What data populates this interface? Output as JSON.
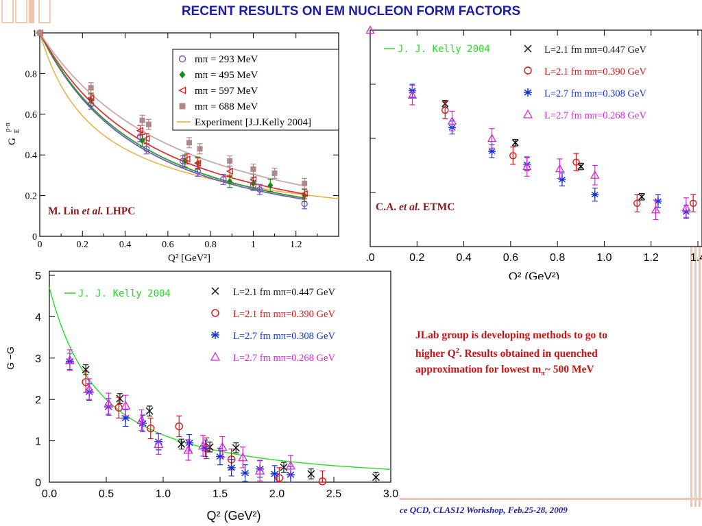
{
  "slide": {
    "title": "RECENT RESULTS ON EM NUCLEON FORM FACTORS",
    "note_line1": "JLab  group is developing methods to go to",
    "note_line2a": "higher Q",
    "note_line2b": ". Results obtained in quenched",
    "note_line3a": "approximation for lowest  m",
    "note_line3b": "~ 500 MeV",
    "footer": "ce QCD,  CLAS12 Workshop, Feb.25-28,  2009",
    "accent_color": "#f3c4ad",
    "title_color": "#1c1ca8",
    "note_color": "#cc1111"
  },
  "chart_data": [
    {
      "type": "scatter",
      "id": "lhpc",
      "ylabel": "G_E^{p-n}",
      "xlabel": "Q² [GeV²]",
      "xlim": [
        0,
        1.4
      ],
      "ylim": [
        0,
        1.0
      ],
      "xticks": [
        0,
        0.2,
        0.4,
        0.6,
        0.8,
        1,
        1.2
      ],
      "yticks": [
        0,
        0.2,
        0.4,
        0.6,
        0.8,
        1
      ],
      "xtick_labels": [
        "0",
        "0.2",
        "0.4",
        "0.6",
        "0.8",
        "1",
        "1.2"
      ],
      "ytick_labels": [
        "0",
        "0.2",
        "0.4",
        "0.6",
        "0.8",
        "1"
      ],
      "label_name": "M. Lin",
      "label_etal": "et al.",
      "label_group": "LHPC",
      "series": [
        {
          "name": "mπ = 293 MeV",
          "marker": "circle",
          "color": "#7b4fc6",
          "points": [
            [
              0,
              1.0
            ],
            [
              0.24,
              0.65
            ],
            [
              0.47,
              0.49
            ],
            [
              0.5,
              0.43
            ],
            [
              0.67,
              0.37
            ],
            [
              0.74,
              0.32
            ],
            [
              0.86,
              0.28
            ],
            [
              1.0,
              0.25
            ],
            [
              1.03,
              0.23
            ],
            [
              1.24,
              0.16
            ]
          ],
          "err": 0.025
        },
        {
          "name": "mπ = 495 MeV",
          "marker": "diamond",
          "color": "#1a8a1a",
          "points": [
            [
              0,
              1.0
            ],
            [
              0.24,
              0.67
            ],
            [
              0.48,
              0.47
            ],
            [
              0.68,
              0.37
            ],
            [
              0.74,
              0.36
            ],
            [
              0.89,
              0.27
            ],
            [
              1.0,
              0.26
            ],
            [
              1.08,
              0.25
            ],
            [
              1.24,
              0.2
            ]
          ],
          "err": 0.03
        },
        {
          "name": "mπ = 597 MeV",
          "marker": "triangle-left",
          "color": "#dd2222",
          "points": [
            [
              0,
              1.0
            ],
            [
              0.24,
              0.68
            ],
            [
              0.47,
              0.52
            ],
            [
              0.5,
              0.48
            ],
            [
              0.69,
              0.38
            ],
            [
              0.74,
              0.36
            ],
            [
              0.89,
              0.32
            ],
            [
              1.0,
              0.28
            ],
            [
              1.24,
              0.21
            ]
          ],
          "err": 0.025
        },
        {
          "name": "mπ = 688 MeV",
          "marker": "square",
          "color": "#b08888",
          "points": [
            [
              0,
              1.0
            ],
            [
              0.24,
              0.73
            ],
            [
              0.48,
              0.57
            ],
            [
              0.51,
              0.55
            ],
            [
              0.7,
              0.46
            ],
            [
              0.75,
              0.43
            ],
            [
              0.89,
              0.37
            ],
            [
              1.0,
              0.33
            ],
            [
              1.1,
              0.31
            ],
            [
              1.24,
              0.26
            ]
          ],
          "err": 0.025
        }
      ],
      "fit_curves": [
        {
          "color": "#6b5fc0",
          "m2": 0.92
        },
        {
          "color": "#2a9a2a",
          "m2": 0.95
        },
        {
          "color": "#dd3333",
          "m2": 1.04
        },
        {
          "color": "#c8a8a8",
          "m2": 1.23
        }
      ],
      "experiment": {
        "name": "Experiment [J.J.Kelly 2004]",
        "color": "#f0a830",
        "m2": 0.38,
        "c": 0.62
      }
    },
    {
      "type": "scatter",
      "id": "etmc",
      "xlabel": "Q²  (GeV²)",
      "xlim": [
        0,
        1.4
      ],
      "ylim": [
        0,
        1.0
      ],
      "xticks": [
        0,
        0.2,
        0.4,
        0.6,
        0.8,
        1.0,
        1.2,
        1.4
      ],
      "xtick_labels": [
        ".0",
        "0.2",
        "0.4",
        "0.6",
        "0.8",
        "1.0",
        "1.2",
        "1.4"
      ],
      "label_name": "C.A.",
      "label_etal": "et al.",
      "label_group": "ETMC",
      "kelly": {
        "name": "J. J. Kelly 2004",
        "color": "#22dd22"
      },
      "series": [
        {
          "name": "L=2.1  fm  mπ=0.447  GeV",
          "marker": "x",
          "color": "#111111",
          "points": [
            [
              0.32,
              0.66
            ],
            [
              0.62,
              0.48
            ],
            [
              0.9,
              0.37
            ],
            [
              1.16,
              0.23
            ]
          ],
          "err": 0.015
        },
        {
          "name": "L=2.1  fm  mπ=0.390  GeV",
          "marker": "circle",
          "color": "#dd1111",
          "points": [
            [
              0.32,
              0.63
            ],
            [
              0.61,
              0.42
            ],
            [
              0.88,
              0.39
            ],
            [
              1.14,
              0.2
            ],
            [
              1.38,
              0.2
            ]
          ],
          "err": 0.04
        },
        {
          "name": "L=2.7  fm  mπ=0.308  GeV",
          "marker": "star",
          "color": "#1133dd",
          "points": [
            [
              0.18,
              0.72
            ],
            [
              0.35,
              0.55
            ],
            [
              0.52,
              0.44
            ],
            [
              0.67,
              0.38
            ],
            [
              0.82,
              0.31
            ],
            [
              0.96,
              0.24
            ],
            [
              1.23,
              0.21
            ],
            [
              1.35,
              0.16
            ]
          ],
          "err": 0.03
        },
        {
          "name": "L=2.7  fm  mπ=0.268  GeV",
          "marker": "triangle",
          "color": "#dd22dd",
          "points": [
            [
              0.0,
              1.0
            ],
            [
              0.18,
              0.7
            ],
            [
              0.35,
              0.58
            ],
            [
              0.52,
              0.5
            ],
            [
              0.67,
              0.37
            ],
            [
              0.81,
              0.36
            ],
            [
              0.96,
              0.33
            ],
            [
              1.22,
              0.17
            ],
            [
              1.35,
              0.18
            ]
          ],
          "err": 0.045
        }
      ]
    },
    {
      "type": "scatter",
      "id": "magnetic",
      "ylabel": "G_M^p − G_M^n",
      "xlabel": "Q²  (GeV²)",
      "xlim": [
        0,
        3.0
      ],
      "ylim": [
        0,
        5
      ],
      "xticks": [
        0,
        0.5,
        1,
        1.5,
        2,
        2.5,
        3
      ],
      "yticks": [
        0,
        1,
        2,
        3,
        4,
        5
      ],
      "xtick_labels": [
        "0.0",
        "0.5",
        "1.0",
        "1.5",
        "2.0",
        "2.5",
        "3.0"
      ],
      "ytick_labels": [
        "0",
        "1",
        "2",
        "3",
        "4",
        "5"
      ],
      "kelly": {
        "name": "J. J. Kelly 2004",
        "color": "#22dd22"
      },
      "series": [
        {
          "name": "L=2.1  fm  mπ=0.447  GeV",
          "marker": "x",
          "color": "#111111",
          "points": [
            [
              0.32,
              2.72
            ],
            [
              0.62,
              2.02
            ],
            [
              0.88,
              1.72
            ],
            [
              1.16,
              0.92
            ],
            [
              1.41,
              0.85
            ],
            [
              1.64,
              0.83
            ],
            [
              2.06,
              0.36
            ],
            [
              2.3,
              0.2
            ],
            [
              2.87,
              0.12
            ]
          ],
          "err": 0.12
        },
        {
          "name": "L=2.1  fm  mπ=0.390  GeV",
          "marker": "circle",
          "color": "#dd1111",
          "points": [
            [
              0.32,
              2.42
            ],
            [
              0.61,
              1.8
            ],
            [
              0.89,
              1.3
            ],
            [
              1.14,
              1.35
            ],
            [
              1.38,
              0.82
            ],
            [
              1.6,
              0.55
            ],
            [
              2.02,
              0.1
            ],
            [
              2.4,
              0.02
            ]
          ],
          "err": 0.25
        },
        {
          "name": "L=2.7  fm  mπ=0.308  GeV",
          "marker": "star",
          "color": "#1133dd",
          "points": [
            [
              0.18,
              2.92
            ],
            [
              0.35,
              2.18
            ],
            [
              0.52,
              1.82
            ],
            [
              0.67,
              1.55
            ],
            [
              0.82,
              1.42
            ],
            [
              0.96,
              0.98
            ],
            [
              1.23,
              0.95
            ],
            [
              1.37,
              0.82
            ],
            [
              1.5,
              0.62
            ],
            [
              1.6,
              0.35
            ],
            [
              1.72,
              0.22
            ],
            [
              1.85,
              0.32
            ],
            [
              1.98,
              0.2
            ],
            [
              2.12,
              0.18
            ]
          ],
          "err": 0.2
        },
        {
          "name": "L=2.7  fm  mπ=0.268  GeV",
          "marker": "triangle",
          "color": "#dd22dd",
          "points": [
            [
              0.18,
              2.95
            ],
            [
              0.35,
              2.25
            ],
            [
              0.52,
              1.9
            ],
            [
              0.67,
              1.85
            ],
            [
              0.81,
              1.5
            ],
            [
              0.96,
              0.92
            ],
            [
              1.22,
              0.78
            ],
            [
              1.35,
              0.88
            ],
            [
              1.52,
              0.85
            ],
            [
              1.7,
              0.6
            ],
            [
              1.85,
              0.28
            ],
            [
              2.12,
              0.4
            ]
          ],
          "err": 0.25
        }
      ]
    }
  ]
}
